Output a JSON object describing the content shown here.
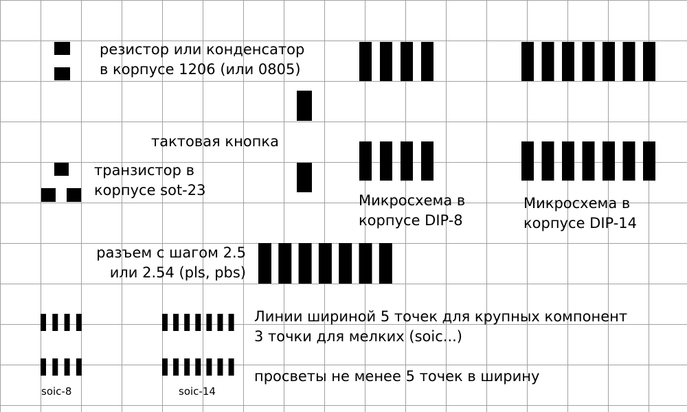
{
  "grid_color": "#a0a0a0",
  "pad_color": "#000000",
  "labels": {
    "resistor": [
      "резистор или конденсатор",
      "в корпусе 1206 (или 0805)"
    ],
    "button": [
      "тактовая кнопка"
    ],
    "transistor": [
      "транзистор в",
      "корпусе sot-23"
    ],
    "dip8": [
      "Микросхема в",
      "корпусе DIP-8"
    ],
    "dip14": [
      "Микросхема в",
      "корпусе DIP-14"
    ],
    "connector": [
      "разъем с шагом 2.5",
      "или 2.54 (pls, pbs)"
    ],
    "rules": [
      "Линии шириной 5 точек для крупных компонент",
      "3 точки для мелких (soic...)"
    ],
    "clearance": [
      "просветы не менее 5 точек в ширину"
    ],
    "soic8": [
      "soic-8"
    ],
    "soic14": [
      "soic-14"
    ]
  }
}
